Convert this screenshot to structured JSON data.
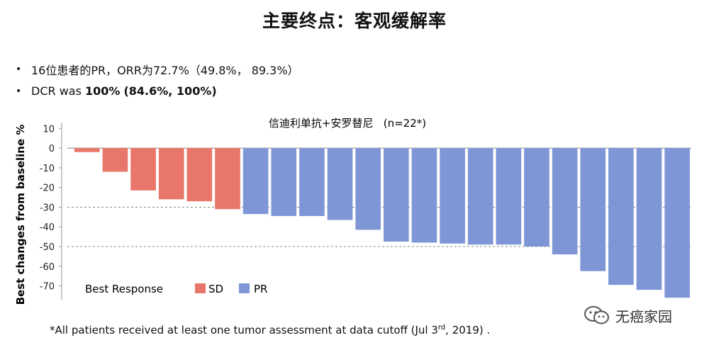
{
  "title": "主要终点：客观缓解率",
  "bullets": [
    {
      "text": "16位患者的PR，ORR为72.7%（49.8%， 89.3%）"
    },
    {
      "prefix": "DCR was ",
      "bold": "100%",
      "rest": "(84.6%, 100%)"
    }
  ],
  "footnote": {
    "pre": "*All patients received at least one tumor assessment at data cutoff (Jul 3",
    "sup": "rd",
    "post": ", 2019) ."
  },
  "watermark": "无癌家园",
  "colors": {
    "SD": "#e8766b",
    "PR": "#7f96d6"
  },
  "chart_data": {
    "type": "bar",
    "title": "信迪利单抗+安罗替尼   (n=22*)",
    "ylabel": "Best changes from baseline %",
    "ylim": [
      -77,
      13
    ],
    "yticks": [
      10,
      0,
      -10,
      -20,
      -30,
      -40,
      -50,
      -60,
      -70
    ],
    "reference_lines": [
      -30,
      -50
    ],
    "legend": {
      "title": "Best Response",
      "entries": [
        "SD",
        "PR"
      ],
      "position": "bottom-left"
    },
    "values": [
      -2,
      -12,
      -21.5,
      -26,
      -27,
      -31,
      -33.5,
      -34.5,
      -34.5,
      -36.5,
      -41.5,
      -47.5,
      -48,
      -48.5,
      -49,
      -49,
      -50,
      -54,
      -62.5,
      -69.5,
      -72,
      -76
    ],
    "response": [
      "SD",
      "SD",
      "SD",
      "SD",
      "SD",
      "SD",
      "PR",
      "PR",
      "PR",
      "PR",
      "PR",
      "PR",
      "PR",
      "PR",
      "PR",
      "PR",
      "PR",
      "PR",
      "PR",
      "PR",
      "PR",
      "PR"
    ]
  }
}
